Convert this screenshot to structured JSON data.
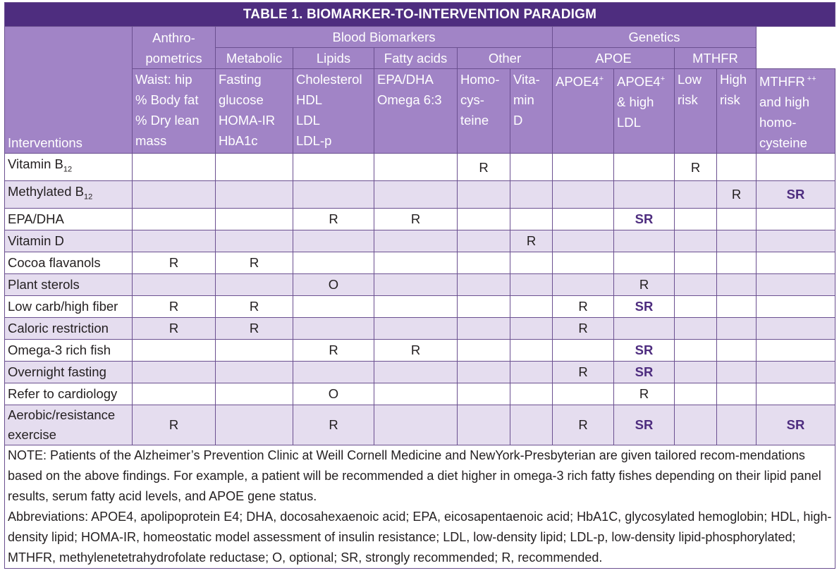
{
  "title": "TABLE 1. BIOMARKER-TO-INTERVENTION PARADIGM",
  "header": {
    "anthro_1": "Anthro-",
    "anthro_2": "pometrics",
    "blood": "Blood Biomarkers",
    "genetics": "Genetics",
    "metabolic": "Metabolic",
    "lipids": "Lipids",
    "fatty": "Fatty acids",
    "other": "Other",
    "apoe": "APOE",
    "mthfr": "MTHFR",
    "interventions": "Interventions"
  },
  "subheaders": {
    "anthro": [
      "Waist: hip",
      "% Body fat",
      "% Dry lean",
      "mass"
    ],
    "metabolic": [
      "Fasting",
      "glucose",
      "HOMA-IR",
      "HbA1c"
    ],
    "lipids": [
      "Cholesterol",
      "HDL",
      "LDL",
      "LDL-p"
    ],
    "fatty": [
      "EPA/DHA",
      "Omega 6:3"
    ],
    "homo": [
      "Homo-",
      "cys-",
      "teine"
    ],
    "vitd": [
      "Vita-",
      "min",
      "D"
    ],
    "apoe4": "APOE4",
    "apoe4_sup": "+",
    "apoe4ldl": [
      "& high",
      "LDL"
    ],
    "apoe4ldl_top": "APOE4",
    "apoe4ldl_sup": "+",
    "low": [
      "Low",
      "risk"
    ],
    "high": [
      "High",
      "risk"
    ],
    "mthfrhigh_top": "MTHFR",
    "mthfrhigh_sup": " ++",
    "mthfrhigh": [
      "and high",
      "homo-",
      "cysteine"
    ]
  },
  "rows": [
    {
      "label": "Vitamin B",
      "sub": "12",
      "cells": [
        "",
        "",
        "",
        "",
        "R",
        "",
        "",
        "",
        "R",
        "",
        ""
      ]
    },
    {
      "label": "Methylated B",
      "sub": "12",
      "cells": [
        "",
        "",
        "",
        "",
        "",
        "",
        "",
        "",
        "",
        "R",
        "SR"
      ]
    },
    {
      "label": "EPA/DHA",
      "sub": "",
      "cells": [
        "",
        "",
        "R",
        "R",
        "",
        "",
        "",
        "SR",
        "",
        "",
        ""
      ]
    },
    {
      "label": "Vitamin D",
      "sub": "",
      "cells": [
        "",
        "",
        "",
        "",
        "",
        "R",
        "",
        "",
        "",
        "",
        ""
      ]
    },
    {
      "label": "Cocoa flavanols",
      "sub": "",
      "cells": [
        "R",
        "R",
        "",
        "",
        "",
        "",
        "",
        "",
        "",
        "",
        ""
      ]
    },
    {
      "label": "Plant sterols",
      "sub": "",
      "cells": [
        "",
        "",
        "O",
        "",
        "",
        "",
        "",
        "R",
        "",
        "",
        ""
      ]
    },
    {
      "label": "Low carb/high fiber",
      "sub": "",
      "cells": [
        "R",
        "R",
        "",
        "",
        "",
        "",
        "R",
        "SR",
        "",
        "",
        ""
      ]
    },
    {
      "label": "Caloric restriction",
      "sub": "",
      "cells": [
        "R",
        "R",
        "",
        "",
        "",
        "",
        "R",
        "",
        "",
        "",
        ""
      ]
    },
    {
      "label": "Omega-3 rich fish",
      "sub": "",
      "cells": [
        "",
        "",
        "R",
        "R",
        "",
        "",
        "",
        "SR",
        "",
        "",
        ""
      ]
    },
    {
      "label": "Overnight fasting",
      "sub": "",
      "cells": [
        "",
        "",
        "",
        "",
        "",
        "",
        "R",
        "SR",
        "",
        "",
        ""
      ]
    },
    {
      "label": "Refer to cardiology",
      "sub": "",
      "cells": [
        "",
        "",
        "O",
        "",
        "",
        "",
        "",
        "R",
        "",
        "",
        ""
      ]
    }
  ],
  "last_row": {
    "label_1": "Aerobic/resistance",
    "label_2": "exercise",
    "cells": [
      "R",
      "",
      "R",
      "",
      "",
      "",
      "R",
      "SR",
      "",
      "",
      "SR"
    ]
  },
  "note": {
    "p1": "NOTE: Patients of the Alzheimer’s Prevention Clinic at Weill Cornell Medicine and NewYork-Presbyterian are given tailored recom-mendations based on the above findings. For example, a patient will be recommended a diet higher in omega-3 rich fatty fishes depending on their lipid panel results, serum fatty acid levels, and APOE gene status.",
    "p2": "Abbreviations: APOE4, apolipoprotein E4; DHA, docosahexaenoic acid; EPA, eicosapentaenoic acid; HbA1C, glycosylated hemoglobin; HDL, high-density lipid; HOMA-IR, homeostatic model assessment of insulin resistance; LDL, low-density lipid; LDL-p, low-density lipid-phosphorylated; MTHFR, methylenetetrahydrofolate reductase; O, optional; SR, strongly recommended; R, recommended."
  },
  "colors": {
    "title_bg": "#4e2d7f",
    "header_bg": "#a184c6",
    "stripe": "#e5ddef",
    "sr_text": "#4e2d7f"
  }
}
